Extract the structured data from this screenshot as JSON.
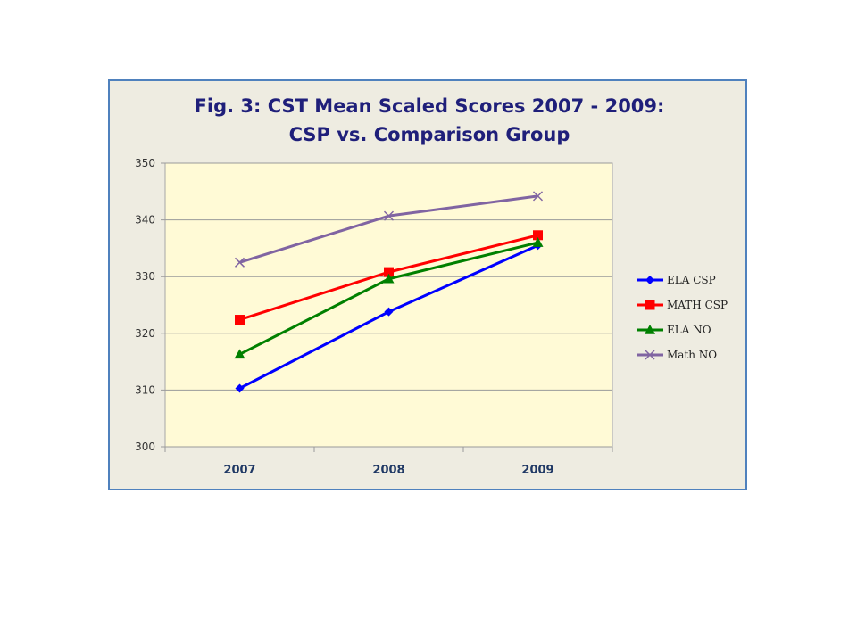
{
  "chart_data": {
    "type": "line",
    "title": "Fig. 3:  CST Mean Scaled Scores 2007 - 2009:",
    "subtitle": "CSP vs. Comparison Group",
    "xlabel": "",
    "ylabel": "",
    "categories": [
      "2007",
      "2008",
      "2009"
    ],
    "ylim": [
      300,
      350
    ],
    "yticks": [
      300,
      310,
      320,
      330,
      340,
      350
    ],
    "grid": true,
    "legend": "right",
    "series": [
      {
        "name": "ELA CSP",
        "values": [
          310.3,
          323.8,
          335.5
        ],
        "color": "#0000ff",
        "marker": "diamond"
      },
      {
        "name": "MATH CSP",
        "values": [
          322.4,
          330.8,
          337.3
        ],
        "color": "#ff0000",
        "marker": "square"
      },
      {
        "name": "ELA NO",
        "values": [
          316.3,
          329.6,
          336.0
        ],
        "color": "#008000",
        "marker": "triangle"
      },
      {
        "name": "Math NO",
        "values": [
          332.5,
          340.7,
          344.2
        ],
        "color": "#8064a2",
        "marker": "x"
      }
    ],
    "plot_background": "#fffad6",
    "frame_background": "#eeece1",
    "frame_border": "#4f81bd"
  }
}
